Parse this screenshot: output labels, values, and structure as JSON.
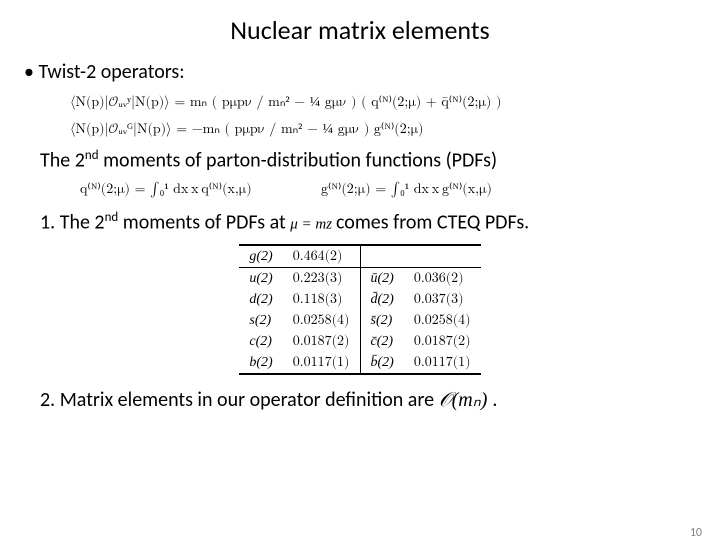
{
  "title": "Nuclear matrix elements",
  "bullet_twist": "Twist-2 operators:",
  "eq1": "⟨N(p)|𝒪ᵤᵥʸ|N(p)⟩ = mₙ ( pμpν / mₙ² − ¼ gμν ) ( q⁽ᴺ⁾(2;μ) + q̄⁽ᴺ⁾(2;μ) )",
  "eq2": "⟨N(p)|𝒪ᵤᵥᴳ|N(p)⟩ = −mₙ ( pμpν / mₙ² − ¼ gμν ) g⁽ᴺ⁾(2;μ)",
  "moments_line_pre": "The 2",
  "moments_line_post": " moments of parton-distribution functions (PDFs)",
  "int_q": "q⁽ᴺ⁾(2;μ) = ∫₀¹ dx x q⁽ᴺ⁾(x,μ)",
  "int_g": "g⁽ᴺ⁾(2;μ) = ∫₀¹ dx x g⁽ᴺ⁾(x,μ)",
  "item1_pre": "1. The 2",
  "item1_mid": " moments of PDFs at",
  "item1_mu": " μ = mᴢ ",
  "item1_post": "comes from CTEQ PDFs.",
  "table": {
    "head": [
      "g(2)",
      "0.464(2)",
      "",
      ""
    ],
    "rows": [
      [
        "u(2)",
        "0.223(3)",
        "ū(2)",
        "0.036(2)"
      ],
      [
        "d(2)",
        "0.118(3)",
        "d̄(2)",
        "0.037(3)"
      ],
      [
        "s(2)",
        "0.0258(4)",
        "s̄(2)",
        "0.0258(4)"
      ],
      [
        "c(2)",
        "0.0187(2)",
        "c̄(2)",
        "0.0187(2)"
      ],
      [
        "b(2)",
        "0.0117(1)",
        "b̄(2)",
        "0.0117(1)"
      ]
    ]
  },
  "item2_pre": "2. Matrix elements in our operator definition are",
  "item2_O": " 𝒪(mₙ) ",
  "item2_post": ".",
  "page_num": "10"
}
